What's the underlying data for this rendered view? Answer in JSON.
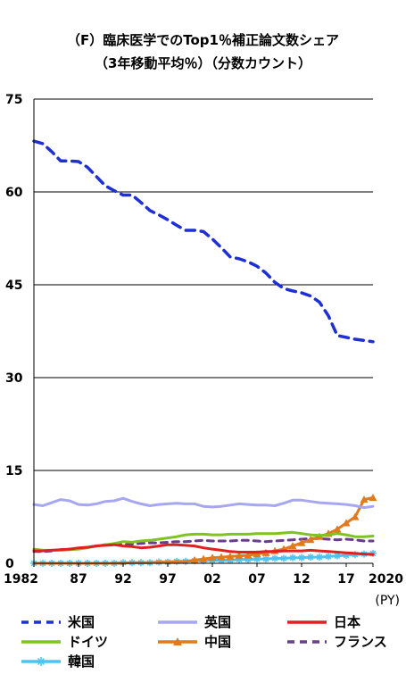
{
  "title_line1": "（F）臨床医学でのTop1％補正論文数シェア",
  "title_line2": "（3年移動平均％）（分数カウント）",
  "chart_data": {
    "type": "line",
    "xlabel": "(PY)",
    "ylabel": "",
    "ylim": [
      0,
      75
    ],
    "xlim": [
      1982,
      2020
    ],
    "yticks": [
      0,
      15,
      30,
      45,
      60,
      75
    ],
    "xtick_values": [
      1982,
      1987,
      1992,
      1997,
      2002,
      2007,
      2012,
      2017,
      2020
    ],
    "xtick_labels": [
      "1982",
      "87",
      "92",
      "97",
      "02",
      "07",
      "12",
      "17",
      "2020"
    ],
    "grid": "horizontal",
    "legend_position": "bottom",
    "x": [
      1982,
      1983,
      1984,
      1985,
      1986,
      1987,
      1988,
      1989,
      1990,
      1991,
      1992,
      1993,
      1994,
      1995,
      1996,
      1997,
      1998,
      1999,
      2000,
      2001,
      2002,
      2003,
      2004,
      2005,
      2006,
      2007,
      2008,
      2009,
      2010,
      2011,
      2012,
      2013,
      2014,
      2015,
      2016,
      2017,
      2018,
      2019,
      2020
    ],
    "series": [
      {
        "name": "米国",
        "color": "#1f2fd6",
        "style": "dashed",
        "marker": "none",
        "values": [
          68.2,
          67.8,
          66.5,
          65.0,
          65.0,
          64.9,
          64.0,
          62.5,
          61.0,
          60.2,
          59.5,
          59.5,
          58.3,
          57.0,
          56.3,
          55.5,
          54.6,
          53.8,
          53.8,
          53.6,
          52.4,
          51.0,
          49.5,
          49.2,
          48.7,
          48.0,
          46.9,
          45.4,
          44.4,
          44.0,
          43.7,
          43.2,
          42.2,
          40.0,
          36.8,
          36.5,
          36.2,
          36.0,
          35.8
        ]
      },
      {
        "name": "英国",
        "color": "#a6a6f2",
        "style": "solid",
        "marker": "none",
        "values": [
          9.5,
          9.3,
          9.8,
          10.3,
          10.1,
          9.5,
          9.4,
          9.6,
          10.0,
          10.1,
          10.5,
          10.0,
          9.6,
          9.3,
          9.5,
          9.6,
          9.7,
          9.6,
          9.6,
          9.2,
          9.1,
          9.2,
          9.4,
          9.6,
          9.5,
          9.4,
          9.4,
          9.3,
          9.7,
          10.2,
          10.2,
          10.0,
          9.8,
          9.7,
          9.6,
          9.5,
          9.3,
          9.0,
          9.2
        ]
      },
      {
        "name": "日本",
        "color": "#e02020",
        "style": "solid",
        "marker": "none",
        "values": [
          2.0,
          2.0,
          2.1,
          2.2,
          2.3,
          2.5,
          2.6,
          2.8,
          2.9,
          3.0,
          2.8,
          2.7,
          2.5,
          2.6,
          2.8,
          3.0,
          3.0,
          2.9,
          2.8,
          2.5,
          2.3,
          2.1,
          1.9,
          1.8,
          1.8,
          1.8,
          1.9,
          1.9,
          2.0,
          2.0,
          2.0,
          2.1,
          2.0,
          1.9,
          1.8,
          1.7,
          1.6,
          1.5,
          1.4
        ]
      },
      {
        "name": "ドイツ",
        "color": "#7ec31f",
        "style": "solid",
        "marker": "none",
        "values": [
          2.3,
          2.1,
          2.1,
          2.1,
          2.2,
          2.3,
          2.5,
          2.8,
          3.0,
          3.2,
          3.5,
          3.4,
          3.6,
          3.7,
          3.9,
          4.1,
          4.3,
          4.6,
          4.7,
          4.7,
          4.6,
          4.6,
          4.7,
          4.7,
          4.7,
          4.8,
          4.8,
          4.8,
          4.9,
          5.0,
          4.8,
          4.6,
          4.5,
          4.6,
          4.8,
          4.6,
          4.3,
          4.3,
          4.4
        ]
      },
      {
        "name": "中国",
        "color": "#e07a1f",
        "style": "solid",
        "marker": "triangle",
        "values": [
          0.0,
          0.0,
          0.0,
          0.0,
          0.0,
          0.0,
          0.0,
          0.0,
          0.0,
          0.0,
          0.0,
          0.1,
          0.1,
          0.1,
          0.2,
          0.2,
          0.3,
          0.3,
          0.5,
          0.7,
          0.9,
          1.0,
          1.1,
          1.2,
          1.3,
          1.5,
          1.7,
          2.0,
          2.3,
          2.8,
          3.3,
          3.8,
          4.3,
          4.8,
          5.5,
          6.5,
          7.5,
          10.3,
          10.6
        ]
      },
      {
        "name": "フランス",
        "color": "#6a3c8f",
        "style": "dashed",
        "marker": "none",
        "values": [
          1.9,
          1.9,
          2.0,
          2.2,
          2.3,
          2.4,
          2.6,
          2.8,
          3.0,
          3.1,
          3.0,
          3.1,
          3.2,
          3.3,
          3.3,
          3.4,
          3.5,
          3.5,
          3.6,
          3.7,
          3.6,
          3.6,
          3.6,
          3.7,
          3.7,
          3.6,
          3.5,
          3.6,
          3.7,
          3.8,
          3.9,
          4.0,
          4.0,
          3.9,
          3.8,
          3.9,
          3.8,
          3.6,
          3.6
        ]
      },
      {
        "name": "韓国",
        "color": "#4fc3f0",
        "style": "solid",
        "marker": "star",
        "values": [
          0.0,
          0.0,
          0.0,
          0.0,
          0.0,
          0.0,
          0.0,
          0.0,
          0.0,
          0.0,
          0.1,
          0.1,
          0.1,
          0.1,
          0.2,
          0.2,
          0.3,
          0.3,
          0.4,
          0.4,
          0.5,
          0.5,
          0.5,
          0.6,
          0.6,
          0.7,
          0.7,
          0.8,
          0.8,
          0.9,
          0.9,
          1.0,
          1.0,
          1.1,
          1.2,
          1.3,
          1.4,
          1.5,
          1.6
        ]
      }
    ]
  }
}
